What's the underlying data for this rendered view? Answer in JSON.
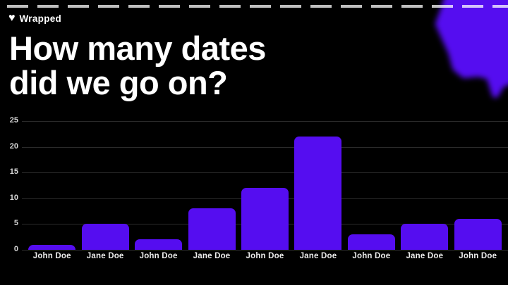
{
  "brand": {
    "icon": "♥",
    "name": "Wrapped"
  },
  "title": {
    "line1": "How many dates",
    "line2": "did we go on?"
  },
  "colors": {
    "background": "#000000",
    "bar": "#550df0",
    "blob": "#550df0",
    "gridline": "#2b2b2b",
    "tick_text": "#d8d8d8",
    "label_text": "#ececec",
    "dash": "rgba(255,255,255,0.75)"
  },
  "chart_data": {
    "type": "bar",
    "categories": [
      "John Doe",
      "Jane Doe",
      "John Doe",
      "Jane Doe",
      "John Doe",
      "Jane Doe",
      "John Doe",
      "Jane Doe",
      "John Doe"
    ],
    "values": [
      1,
      5,
      2,
      8,
      12,
      22,
      3,
      5,
      6
    ],
    "title": "How many dates did we go on?",
    "xlabel": "",
    "ylabel": "",
    "ylim": [
      0,
      25
    ],
    "yticks": [
      0,
      5,
      10,
      15,
      20,
      25
    ],
    "grid": true,
    "legend": false,
    "bar_color": "#550df0"
  }
}
